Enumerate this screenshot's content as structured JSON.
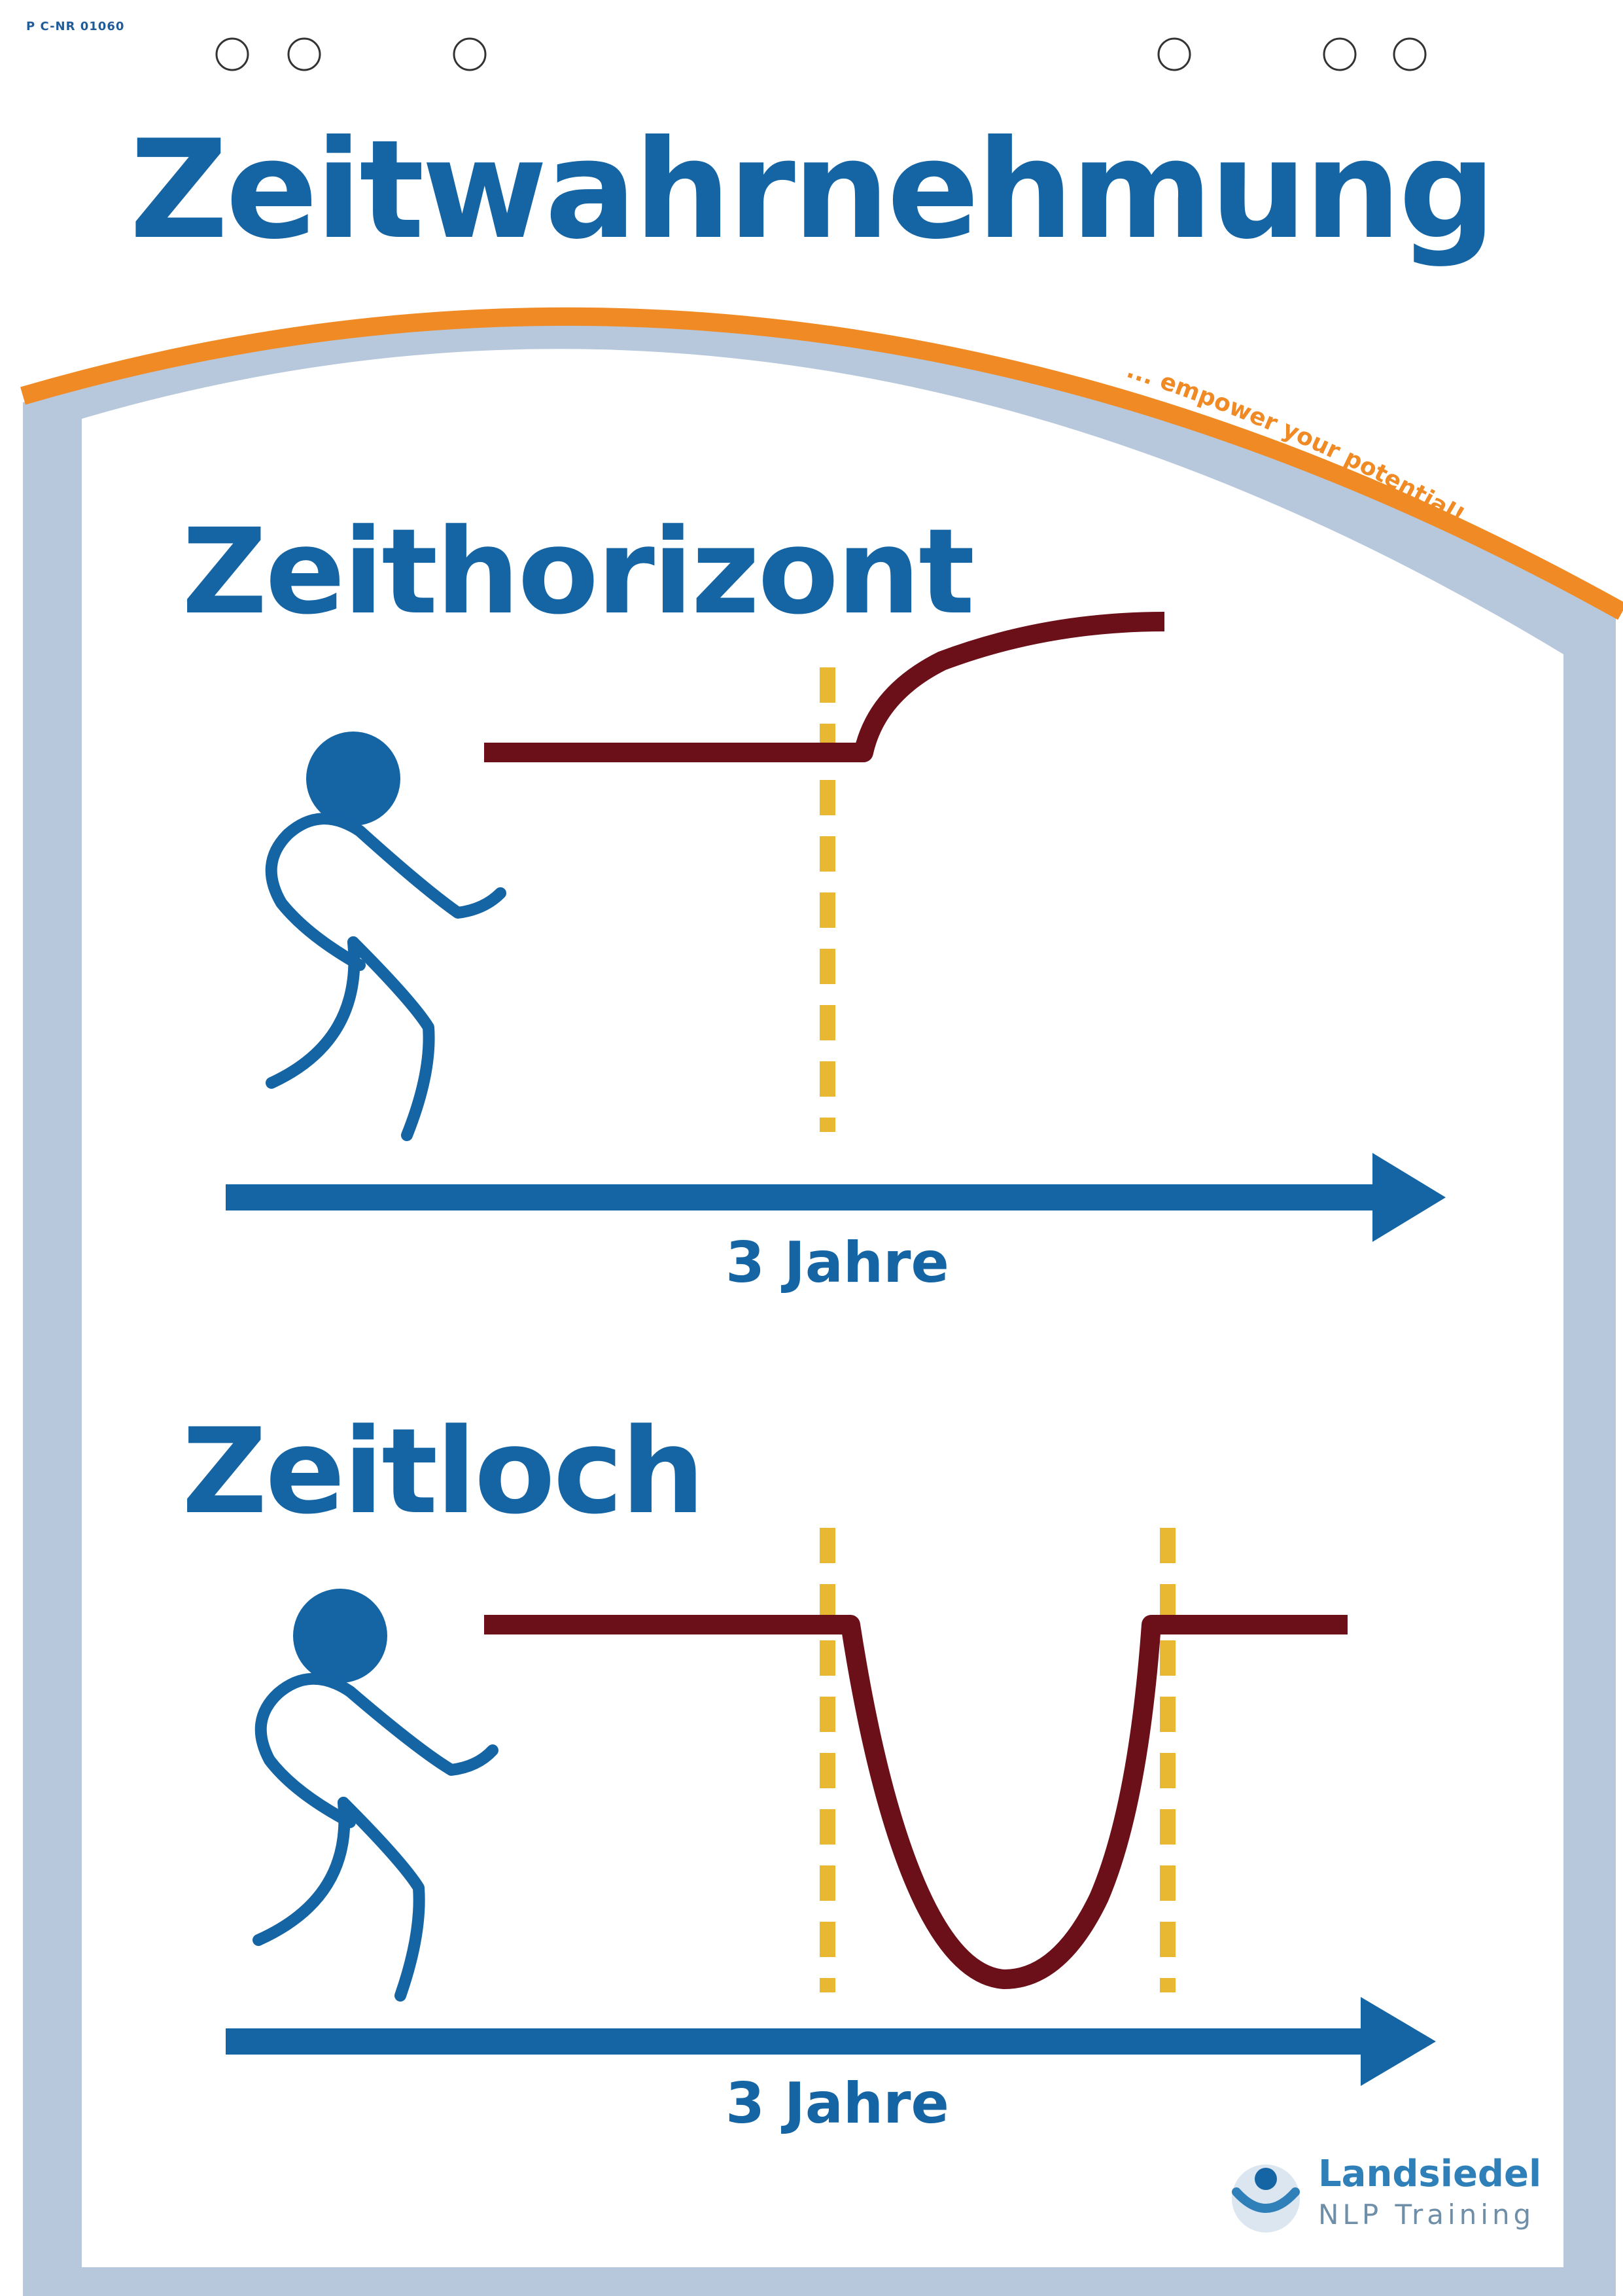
{
  "doc_code": "P C-NR 01060",
  "title": "Zeitwahrnehmung",
  "slogan": "... empower your potential!",
  "sections": [
    {
      "title": "Zeithorizont",
      "axis_label": "3 Jahre"
    },
    {
      "title": "Zeitloch",
      "axis_label": "3 Jahre"
    }
  ],
  "logo": {
    "name": "Landsiedel",
    "subtitle": "NLP Training"
  },
  "colors": {
    "blue": "#1565a5",
    "orange": "#f08a24",
    "dark_red": "#6b1019",
    "yellow_dashed": "#e8b832",
    "frame_grey_blue": "#b7c8dc"
  }
}
